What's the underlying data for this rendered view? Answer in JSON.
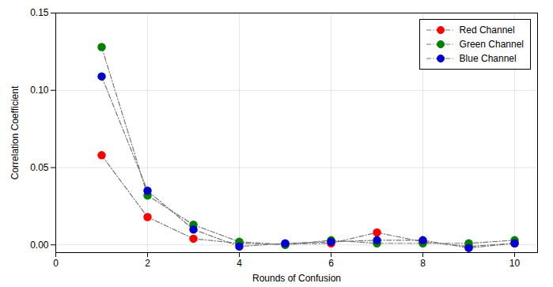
{
  "chart_data": {
    "type": "line",
    "xlabel": "Rounds of Confusion",
    "ylabel": "Correlation Coefficient",
    "x": [
      1,
      2,
      3,
      4,
      5,
      6,
      7,
      8,
      9,
      10
    ],
    "color": "#777777",
    "marker": "circle",
    "line_style": "dashdot",
    "series": [
      {
        "name": "Red Channel",
        "color": "#ff0000",
        "values": [
          0.058,
          0.018,
          0.004,
          0.001,
          0.0005,
          0.001,
          0.008,
          0.002,
          -0.001,
          0.001
        ]
      },
      {
        "name": "Green Channel",
        "color": "#008000",
        "values": [
          0.128,
          0.032,
          0.013,
          0.002,
          0.0,
          0.003,
          0.001,
          0.001,
          0.001,
          0.003
        ]
      },
      {
        "name": "Blue Channel",
        "color": "#0000cd",
        "values": [
          0.109,
          0.035,
          0.01,
          -0.001,
          0.001,
          0.002,
          0.003,
          0.003,
          -0.002,
          0.001
        ]
      }
    ],
    "xlim": [
      0,
      10.5
    ],
    "xticks": [
      0,
      2,
      4,
      6,
      8,
      10
    ],
    "ylim": [
      -0.005,
      0.15
    ],
    "yticks": [
      {
        "value": 0.0,
        "label": "0.00"
      },
      0.05,
      {
        "value": 0.1,
        "label": "0.10"
      },
      {
        "value": 0.15,
        "label": "0.15"
      }
    ],
    "grid": true,
    "legend": "upper right"
  }
}
